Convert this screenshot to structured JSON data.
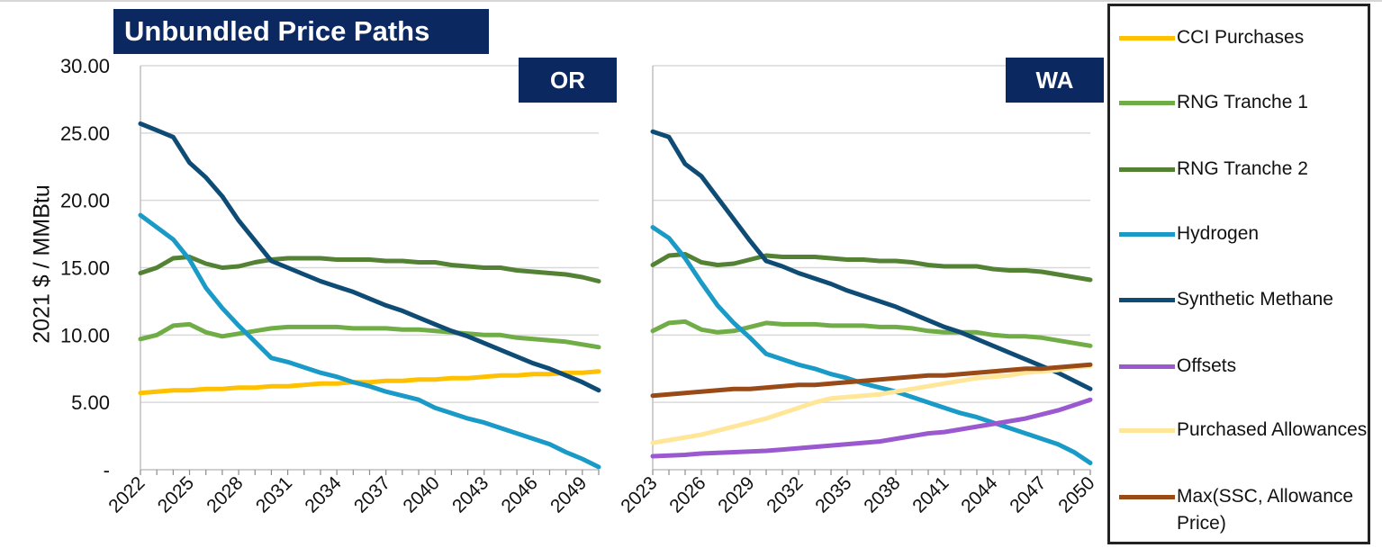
{
  "title": "Unbundled Price Paths",
  "y_axis_label": "2021 $ / MMBtu",
  "y_tick_labels": [
    "-",
    "5.00",
    "10.00",
    "15.00",
    "20.00",
    "25.00",
    "30.00"
  ],
  "colors": {
    "CCI Purchases": "#ffc000",
    "RNG Tranche 1": "#70ad47",
    "RNG Tranche 2": "#548235",
    "Hydrogen": "#1a9ac6",
    "Synthetic Methane": "#0f4c75",
    "Offsets": "#9b59d0",
    "Purchased Allowances": "#ffe699",
    "Max(SSC, Allowance Price)": "#9a4a16",
    "panel_badge": "#0b2860"
  },
  "legend": [
    "CCI Purchases",
    "RNG Tranche 1",
    "RNG Tranche 2",
    "Hydrogen",
    "Synthetic Methane",
    "Offsets",
    "Purchased Allowances",
    "Max(SSC, Allowance Price)"
  ],
  "chart_data": [
    {
      "type": "line",
      "panel": "OR",
      "ylabel": "2021 $ / MMBtu",
      "ylim": [
        0,
        30
      ],
      "x": [
        2022,
        2023,
        2024,
        2025,
        2026,
        2027,
        2028,
        2029,
        2030,
        2031,
        2032,
        2033,
        2034,
        2035,
        2036,
        2037,
        2038,
        2039,
        2040,
        2041,
        2042,
        2043,
        2044,
        2045,
        2046,
        2047,
        2048,
        2049,
        2050
      ],
      "x_tick_labels": [
        "2022",
        "2025",
        "2028",
        "2031",
        "2034",
        "2037",
        "2040",
        "2043",
        "2046",
        "2049"
      ],
      "series": [
        {
          "name": "CCI Purchases",
          "values": [
            5.7,
            5.8,
            5.9,
            5.9,
            6.0,
            6.0,
            6.1,
            6.1,
            6.2,
            6.2,
            6.3,
            6.4,
            6.4,
            6.5,
            6.5,
            6.6,
            6.6,
            6.7,
            6.7,
            6.8,
            6.8,
            6.9,
            7.0,
            7.0,
            7.1,
            7.1,
            7.2,
            7.2,
            7.3
          ]
        },
        {
          "name": "RNG Tranche 1",
          "values": [
            9.7,
            10.0,
            10.7,
            10.8,
            10.2,
            9.9,
            10.1,
            10.3,
            10.5,
            10.6,
            10.6,
            10.6,
            10.6,
            10.5,
            10.5,
            10.5,
            10.4,
            10.4,
            10.3,
            10.2,
            10.1,
            10.0,
            10.0,
            9.8,
            9.7,
            9.6,
            9.5,
            9.3,
            9.1
          ]
        },
        {
          "name": "RNG Tranche 2",
          "values": [
            14.6,
            15.0,
            15.7,
            15.8,
            15.3,
            15.0,
            15.1,
            15.4,
            15.6,
            15.7,
            15.7,
            15.7,
            15.6,
            15.6,
            15.6,
            15.5,
            15.5,
            15.4,
            15.4,
            15.2,
            15.1,
            15.0,
            15.0,
            14.8,
            14.7,
            14.6,
            14.5,
            14.3,
            14.0
          ]
        },
        {
          "name": "Hydrogen",
          "values": [
            18.9,
            18.0,
            17.1,
            15.6,
            13.5,
            12.0,
            10.7,
            9.5,
            8.3,
            8.0,
            7.6,
            7.2,
            6.9,
            6.5,
            6.2,
            5.8,
            5.5,
            5.2,
            4.6,
            4.2,
            3.8,
            3.5,
            3.1,
            2.7,
            2.3,
            1.9,
            1.3,
            0.8,
            0.2
          ]
        },
        {
          "name": "Synthetic Methane",
          "values": [
            25.7,
            25.2,
            24.7,
            22.8,
            21.7,
            20.3,
            18.5,
            17.0,
            15.5,
            15.0,
            14.5,
            14.0,
            13.6,
            13.2,
            12.7,
            12.2,
            11.8,
            11.3,
            10.8,
            10.3,
            9.9,
            9.4,
            8.9,
            8.4,
            7.9,
            7.5,
            7.0,
            6.5,
            5.9
          ]
        }
      ]
    },
    {
      "type": "line",
      "panel": "WA",
      "ylabel": "2021 $ / MMBtu",
      "ylim": [
        0,
        30
      ],
      "x": [
        2023,
        2024,
        2025,
        2026,
        2027,
        2028,
        2029,
        2030,
        2031,
        2032,
        2033,
        2034,
        2035,
        2036,
        2037,
        2038,
        2039,
        2040,
        2041,
        2042,
        2043,
        2044,
        2045,
        2046,
        2047,
        2048,
        2049,
        2050
      ],
      "x_tick_labels": [
        "2023",
        "2026",
        "2029",
        "2032",
        "2035",
        "2038",
        "2041",
        "2044",
        "2047",
        "2050"
      ],
      "series": [
        {
          "name": "RNG Tranche 1",
          "values": [
            10.3,
            10.9,
            11.0,
            10.4,
            10.2,
            10.3,
            10.6,
            10.9,
            10.8,
            10.8,
            10.8,
            10.7,
            10.7,
            10.7,
            10.6,
            10.6,
            10.5,
            10.3,
            10.2,
            10.2,
            10.2,
            10.0,
            9.9,
            9.9,
            9.8,
            9.6,
            9.4,
            9.2
          ]
        },
        {
          "name": "RNG Tranche 2",
          "values": [
            15.2,
            15.9,
            16.0,
            15.4,
            15.2,
            15.3,
            15.6,
            15.9,
            15.8,
            15.8,
            15.8,
            15.7,
            15.6,
            15.6,
            15.5,
            15.5,
            15.4,
            15.2,
            15.1,
            15.1,
            15.1,
            14.9,
            14.8,
            14.8,
            14.7,
            14.5,
            14.3,
            14.1
          ]
        },
        {
          "name": "Hydrogen",
          "values": [
            18.0,
            17.2,
            15.7,
            13.9,
            12.2,
            10.9,
            9.8,
            8.6,
            8.2,
            7.8,
            7.5,
            7.1,
            6.8,
            6.4,
            6.1,
            5.8,
            5.4,
            5.0,
            4.6,
            4.2,
            3.9,
            3.5,
            3.1,
            2.7,
            2.3,
            1.9,
            1.3,
            0.5
          ]
        },
        {
          "name": "Synthetic Methane",
          "values": [
            25.1,
            24.7,
            22.7,
            21.8,
            20.2,
            18.6,
            17.0,
            15.5,
            15.1,
            14.6,
            14.2,
            13.8,
            13.3,
            12.9,
            12.5,
            12.1,
            11.6,
            11.1,
            10.6,
            10.2,
            9.7,
            9.2,
            8.7,
            8.2,
            7.7,
            7.2,
            6.6,
            6.0
          ]
        },
        {
          "name": "Offsets",
          "values": [
            1.0,
            1.05,
            1.1,
            1.2,
            1.25,
            1.3,
            1.35,
            1.4,
            1.5,
            1.6,
            1.7,
            1.8,
            1.9,
            2.0,
            2.1,
            2.3,
            2.5,
            2.7,
            2.8,
            3.0,
            3.2,
            3.4,
            3.6,
            3.8,
            4.1,
            4.4,
            4.8,
            5.2
          ]
        },
        {
          "name": "Purchased Allowances",
          "values": [
            2.0,
            2.2,
            2.4,
            2.6,
            2.9,
            3.2,
            3.5,
            3.8,
            4.2,
            4.6,
            5.0,
            5.3,
            5.4,
            5.5,
            5.6,
            5.8,
            6.0,
            6.2,
            6.4,
            6.6,
            6.8,
            6.9,
            7.0,
            7.2,
            7.3,
            7.4,
            7.6,
            7.7
          ]
        },
        {
          "name": "Max(SSC, Allowance Price)",
          "values": [
            5.5,
            5.6,
            5.7,
            5.8,
            5.9,
            6.0,
            6.0,
            6.1,
            6.2,
            6.3,
            6.3,
            6.4,
            6.5,
            6.6,
            6.7,
            6.8,
            6.9,
            7.0,
            7.0,
            7.1,
            7.2,
            7.3,
            7.4,
            7.5,
            7.5,
            7.6,
            7.7,
            7.8
          ]
        }
      ]
    }
  ],
  "panel_labels": {
    "OR": "OR",
    "WA": "WA"
  }
}
